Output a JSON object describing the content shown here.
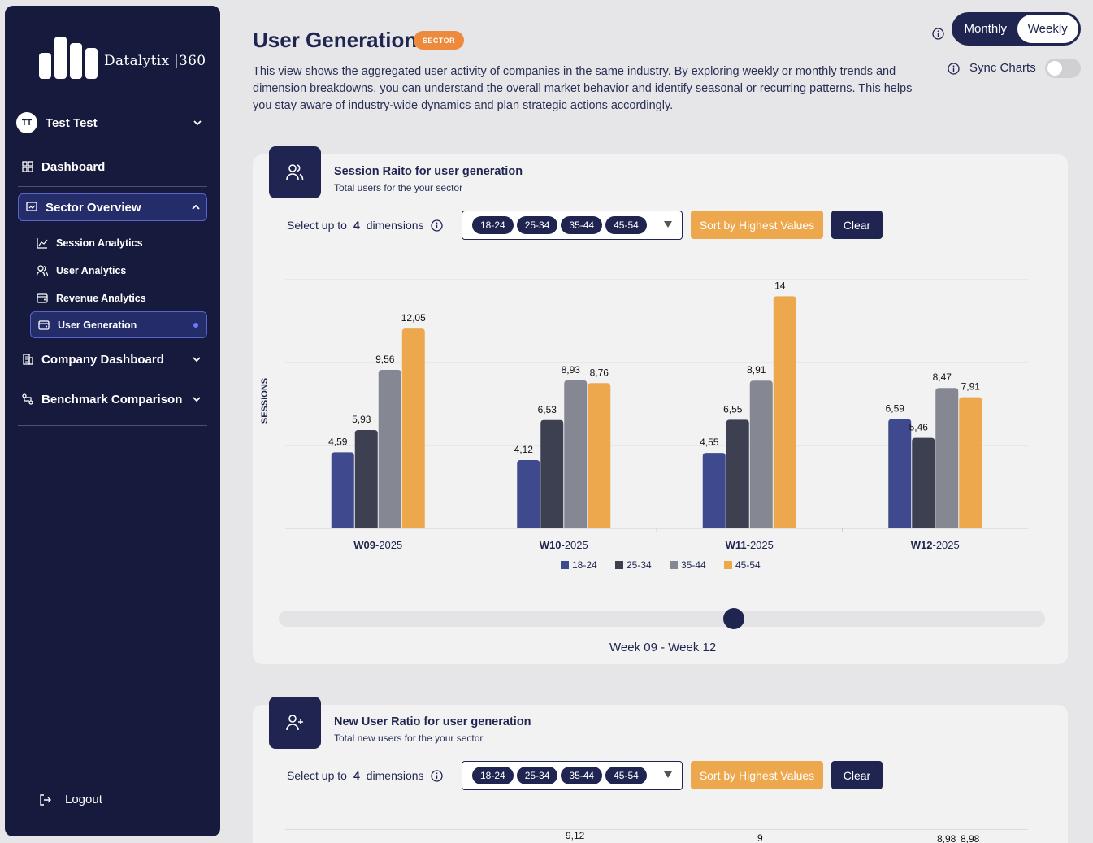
{
  "sidebar": {
    "logo_text": "Datalytix |360",
    "user": {
      "initials": "TT",
      "name": "Test Test"
    },
    "nav": {
      "dashboard": "Dashboard",
      "sector_overview": "Sector Overview",
      "sub": {
        "session_analytics": "Session Analytics",
        "user_analytics": "User Analytics",
        "revenue_analytics": "Revenue Analytics",
        "user_generation": "User Generation"
      },
      "company_dashboard": "Company Dashboard",
      "benchmark_comparison": "Benchmark Comparison"
    },
    "logout": "Logout"
  },
  "header": {
    "title": "User Generation",
    "badge": "SECTOR",
    "description": "This view shows the aggregated user activity of companies in the same industry. By exploring weekly or monthly trends and dimension breakdowns, you can understand the overall market behavior and identify seasonal or recurring patterns. This helps you stay aware of industry-wide dynamics and plan strategic actions accordingly.",
    "period_toggle": {
      "monthly": "Monthly",
      "weekly": "Weekly",
      "selected": "Weekly"
    },
    "sync_charts": {
      "label": "Sync Charts",
      "enabled": false
    }
  },
  "card1": {
    "title": "Session Raito for user generation",
    "subtitle": "Total users for the your sector",
    "select_prefix": "Select up to",
    "select_count": "4",
    "select_suffix": "dimensions",
    "chips": [
      "18-24",
      "25-34",
      "35-44",
      "45-54"
    ],
    "sort_button": "Sort by Highest Values",
    "clear_button": "Clear",
    "range_label": "Week 09 - Week 12",
    "slider_value": 0.6
  },
  "card2": {
    "title": "New User Ratio for user generation",
    "subtitle": "Total new users for the your sector",
    "select_prefix": "Select up to",
    "select_count": "4",
    "select_suffix": "dimensions",
    "chips": [
      "18-24",
      "25-34",
      "35-44",
      "45-54"
    ],
    "sort_button": "Sort by Highest Values",
    "clear_button": "Clear",
    "peek_values": [
      "9,12",
      "9",
      "8,98",
      "8,98"
    ]
  },
  "colors": {
    "sidebar_bg": "#161a3c",
    "accent_navy": "#1f2550",
    "accent_orange": "#eda84d",
    "series": [
      "#3f4a8e",
      "#3d4050",
      "#858893",
      "#eda84d"
    ]
  },
  "chart_data": {
    "type": "bar",
    "ylabel": "SESSIONS",
    "categories": [
      "W09-2025",
      "W10-2025",
      "W11-2025",
      "W12-2025"
    ],
    "ylim": [
      0,
      15
    ],
    "grid": true,
    "legend": "bottom",
    "series": [
      {
        "name": "18-24",
        "values": [
          4.59,
          4.12,
          4.55,
          6.59
        ],
        "labels": [
          "4,59",
          "4,12",
          "4,55",
          "6,59"
        ]
      },
      {
        "name": "25-34",
        "values": [
          5.93,
          6.53,
          6.55,
          5.46
        ],
        "labels": [
          "5,93",
          "6,53",
          "6,55",
          "5,46"
        ]
      },
      {
        "name": "35-44",
        "values": [
          9.56,
          8.93,
          8.91,
          8.47
        ],
        "labels": [
          "9,56",
          "8,93",
          "8,91",
          "8,47"
        ]
      },
      {
        "name": "45-54",
        "values": [
          12.05,
          8.76,
          14,
          7.91
        ],
        "labels": [
          "12,05",
          "8,76",
          "14",
          "7,91"
        ]
      }
    ]
  }
}
